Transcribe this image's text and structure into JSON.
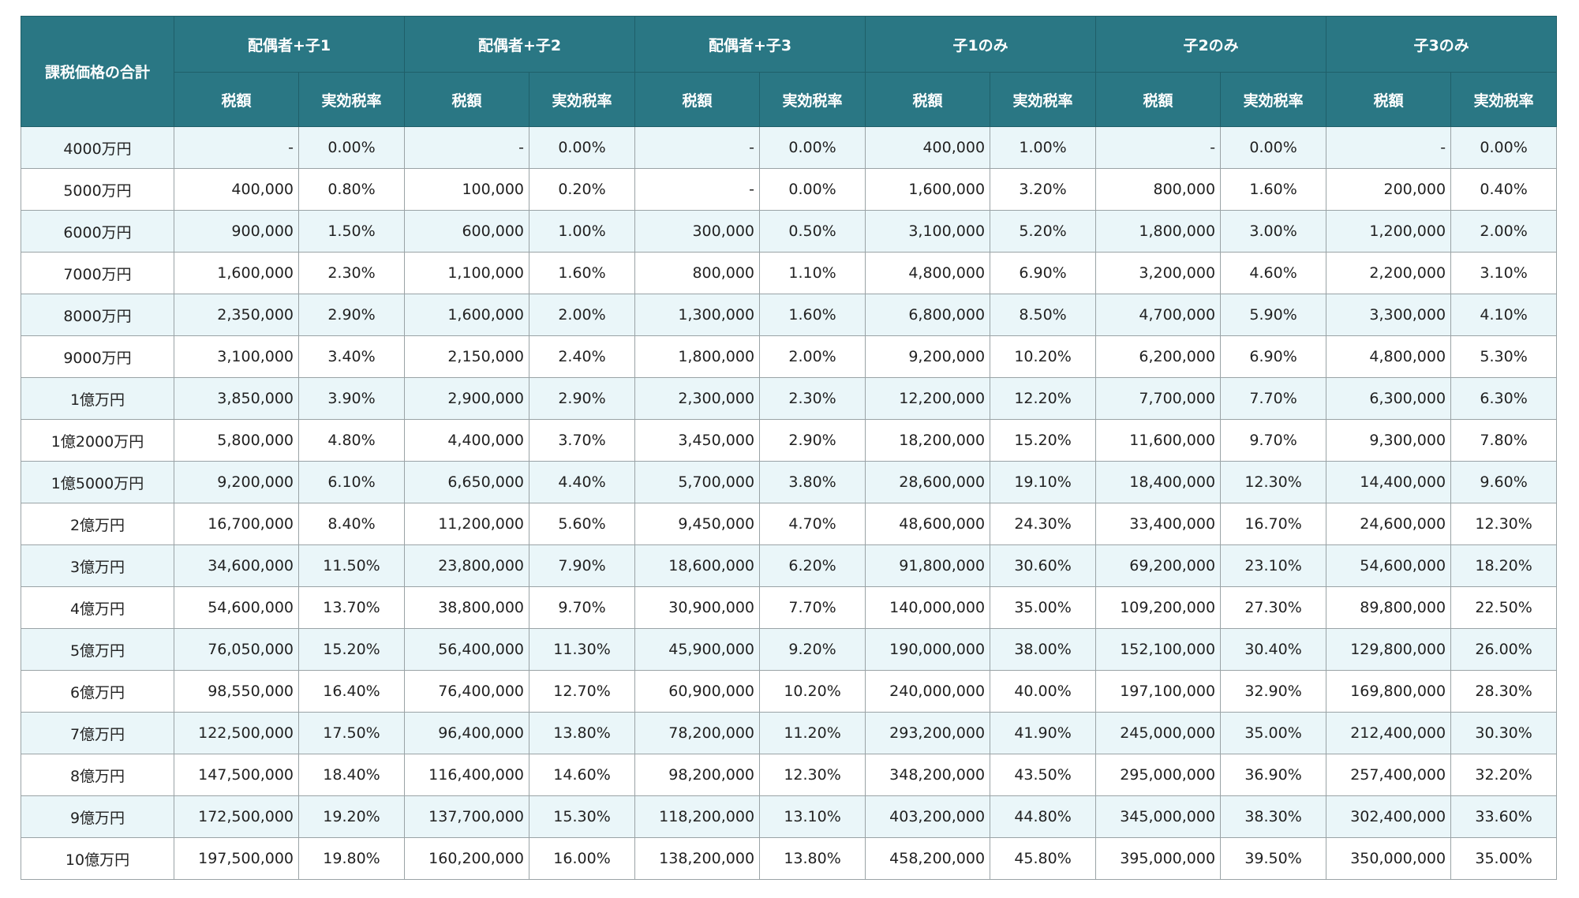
{
  "table": {
    "corner": "課税価格の合計",
    "groups": [
      {
        "name": "配偶者+子1",
        "columns": [
          "税額",
          "実効税率"
        ]
      },
      {
        "name": "配偶者+子2",
        "columns": [
          "税額",
          "実効税率"
        ]
      },
      {
        "name": "配偶者+子3",
        "columns": [
          "税額",
          "実効税率"
        ]
      },
      {
        "name": "子1のみ",
        "columns": [
          "税額",
          "実効税率"
        ]
      },
      {
        "name": "子2のみ",
        "columns": [
          "税額",
          "実効税率"
        ]
      },
      {
        "name": "子3のみ",
        "columns": [
          "税額",
          "実効税率"
        ]
      }
    ],
    "rows": [
      [
        "4000万円",
        "-",
        "0.00%",
        "-",
        "0.00%",
        "-",
        "0.00%",
        "400,000",
        "1.00%",
        "-",
        "0.00%",
        "-",
        "0.00%"
      ],
      [
        "5000万円",
        "400,000",
        "0.80%",
        "100,000",
        "0.20%",
        "-",
        "0.00%",
        "1,600,000",
        "3.20%",
        "800,000",
        "1.60%",
        "200,000",
        "0.40%"
      ],
      [
        "6000万円",
        "900,000",
        "1.50%",
        "600,000",
        "1.00%",
        "300,000",
        "0.50%",
        "3,100,000",
        "5.20%",
        "1,800,000",
        "3.00%",
        "1,200,000",
        "2.00%"
      ],
      [
        "7000万円",
        "1,600,000",
        "2.30%",
        "1,100,000",
        "1.60%",
        "800,000",
        "1.10%",
        "4,800,000",
        "6.90%",
        "3,200,000",
        "4.60%",
        "2,200,000",
        "3.10%"
      ],
      [
        "8000万円",
        "2,350,000",
        "2.90%",
        "1,600,000",
        "2.00%",
        "1,300,000",
        "1.60%",
        "6,800,000",
        "8.50%",
        "4,700,000",
        "5.90%",
        "3,300,000",
        "4.10%"
      ],
      [
        "9000万円",
        "3,100,000",
        "3.40%",
        "2,150,000",
        "2.40%",
        "1,800,000",
        "2.00%",
        "9,200,000",
        "10.20%",
        "6,200,000",
        "6.90%",
        "4,800,000",
        "5.30%"
      ],
      [
        "1億万円",
        "3,850,000",
        "3.90%",
        "2,900,000",
        "2.90%",
        "2,300,000",
        "2.30%",
        "12,200,000",
        "12.20%",
        "7,700,000",
        "7.70%",
        "6,300,000",
        "6.30%"
      ],
      [
        "1億2000万円",
        "5,800,000",
        "4.80%",
        "4,400,000",
        "3.70%",
        "3,450,000",
        "2.90%",
        "18,200,000",
        "15.20%",
        "11,600,000",
        "9.70%",
        "9,300,000",
        "7.80%"
      ],
      [
        "1億5000万円",
        "9,200,000",
        "6.10%",
        "6,650,000",
        "4.40%",
        "5,700,000",
        "3.80%",
        "28,600,000",
        "19.10%",
        "18,400,000",
        "12.30%",
        "14,400,000",
        "9.60%"
      ],
      [
        "2億万円",
        "16,700,000",
        "8.40%",
        "11,200,000",
        "5.60%",
        "9,450,000",
        "4.70%",
        "48,600,000",
        "24.30%",
        "33,400,000",
        "16.70%",
        "24,600,000",
        "12.30%"
      ],
      [
        "3億万円",
        "34,600,000",
        "11.50%",
        "23,800,000",
        "7.90%",
        "18,600,000",
        "6.20%",
        "91,800,000",
        "30.60%",
        "69,200,000",
        "23.10%",
        "54,600,000",
        "18.20%"
      ],
      [
        "4億万円",
        "54,600,000",
        "13.70%",
        "38,800,000",
        "9.70%",
        "30,900,000",
        "7.70%",
        "140,000,000",
        "35.00%",
        "109,200,000",
        "27.30%",
        "89,800,000",
        "22.50%"
      ],
      [
        "5億万円",
        "76,050,000",
        "15.20%",
        "56,400,000",
        "11.30%",
        "45,900,000",
        "9.20%",
        "190,000,000",
        "38.00%",
        "152,100,000",
        "30.40%",
        "129,800,000",
        "26.00%"
      ],
      [
        "6億万円",
        "98,550,000",
        "16.40%",
        "76,400,000",
        "12.70%",
        "60,900,000",
        "10.20%",
        "240,000,000",
        "40.00%",
        "197,100,000",
        "32.90%",
        "169,800,000",
        "28.30%"
      ],
      [
        "7億万円",
        "122,500,000",
        "17.50%",
        "96,400,000",
        "13.80%",
        "78,200,000",
        "11.20%",
        "293,200,000",
        "41.90%",
        "245,000,000",
        "35.00%",
        "212,400,000",
        "30.30%"
      ],
      [
        "8億万円",
        "147,500,000",
        "18.40%",
        "116,400,000",
        "14.60%",
        "98,200,000",
        "12.30%",
        "348,200,000",
        "43.50%",
        "295,000,000",
        "36.90%",
        "257,400,000",
        "32.20%"
      ],
      [
        "9億万円",
        "172,500,000",
        "19.20%",
        "137,700,000",
        "15.30%",
        "118,200,000",
        "13.10%",
        "403,200,000",
        "44.80%",
        "345,000,000",
        "38.30%",
        "302,400,000",
        "33.60%"
      ],
      [
        "10億万円",
        "197,500,000",
        "19.80%",
        "160,200,000",
        "16.00%",
        "138,200,000",
        "13.80%",
        "458,200,000",
        "45.80%",
        "395,000,000",
        "39.50%",
        "350,000,000",
        "35.00%"
      ]
    ]
  }
}
